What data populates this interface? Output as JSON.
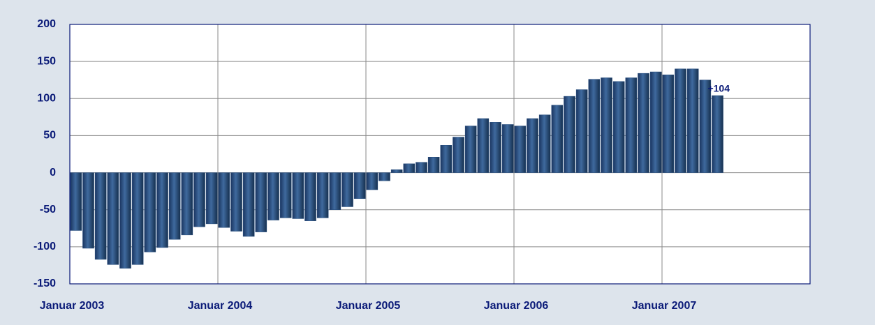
{
  "chart_data": {
    "type": "bar",
    "categories": [
      "Januar 2003",
      null,
      null,
      null,
      null,
      null,
      null,
      null,
      null,
      null,
      null,
      null,
      "Januar 2004",
      null,
      null,
      null,
      null,
      null,
      null,
      null,
      null,
      null,
      null,
      null,
      "Januar 2005",
      null,
      null,
      null,
      null,
      null,
      null,
      null,
      null,
      null,
      null,
      null,
      "Januar 2006",
      null,
      null,
      null,
      null,
      null,
      null,
      null,
      null,
      null,
      null,
      null,
      "Januar 2007",
      null,
      null,
      null,
      null,
      null,
      null,
      null,
      null,
      null,
      null,
      null
    ],
    "values": [
      -78,
      -102,
      -117,
      -124,
      -129,
      -124,
      -107,
      -101,
      -90,
      -84,
      -73,
      -69,
      -74,
      -79,
      -86,
      -80,
      -64,
      -61,
      -62,
      -65,
      -61,
      -50,
      -46,
      -35,
      -23,
      -11,
      4,
      12,
      14,
      21,
      37,
      48,
      63,
      73,
      68,
      65,
      63,
      73,
      78,
      91,
      103,
      112,
      126,
      128,
      123,
      128,
      134,
      136,
      132,
      140,
      140,
      125,
      104,
      null,
      null,
      null,
      null,
      null,
      null,
      null
    ],
    "value_labels": [
      null,
      null,
      null,
      null,
      null,
      null,
      null,
      null,
      null,
      null,
      null,
      null,
      null,
      null,
      null,
      null,
      null,
      null,
      null,
      null,
      null,
      null,
      null,
      null,
      null,
      null,
      null,
      null,
      null,
      null,
      null,
      null,
      null,
      null,
      null,
      null,
      null,
      null,
      null,
      null,
      null,
      null,
      null,
      null,
      null,
      null,
      null,
      null,
      null,
      null,
      null,
      null,
      "+104",
      null,
      null,
      null,
      null,
      null,
      null,
      null
    ],
    "color": "#234a7c",
    "ylim": [
      -150,
      200
    ],
    "yticks": [
      -150,
      -100,
      -50,
      0,
      50,
      100,
      150,
      200
    ],
    "grid": true
  }
}
